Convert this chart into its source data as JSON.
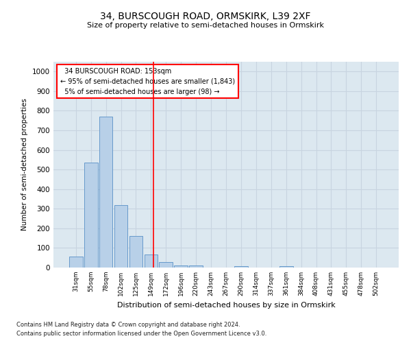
{
  "title": "34, BURSCOUGH ROAD, ORMSKIRK, L39 2XF",
  "subtitle": "Size of property relative to semi-detached houses in Ormskirk",
  "xlabel": "Distribution of semi-detached houses by size in Ormskirk",
  "ylabel": "Number of semi-detached properties",
  "footer_line1": "Contains HM Land Registry data © Crown copyright and database right 2024.",
  "footer_line2": "Contains public sector information licensed under the Open Government Licence v3.0.",
  "bar_labels": [
    "31sqm",
    "55sqm",
    "78sqm",
    "102sqm",
    "125sqm",
    "149sqm",
    "172sqm",
    "196sqm",
    "220sqm",
    "243sqm",
    "267sqm",
    "290sqm",
    "314sqm",
    "337sqm",
    "361sqm",
    "384sqm",
    "408sqm",
    "431sqm",
    "455sqm",
    "478sqm",
    "502sqm"
  ],
  "bar_values": [
    55,
    535,
    770,
    320,
    162,
    68,
    28,
    12,
    12,
    0,
    0,
    8,
    0,
    0,
    8,
    0,
    0,
    0,
    0,
    0,
    0
  ],
  "bar_color": "#b8d0e8",
  "bar_edge_color": "#6699cc",
  "property_label": "34 BURSCOUGH ROAD: 153sqm",
  "pct_smaller": 95,
  "n_smaller": 1843,
  "pct_larger": 5,
  "n_larger": 98,
  "vline_color": "red",
  "ylim": [
    0,
    1050
  ],
  "yticks": [
    0,
    100,
    200,
    300,
    400,
    500,
    600,
    700,
    800,
    900,
    1000
  ],
  "grid_color": "#c8d4e0",
  "background_color": "#dce8f0",
  "vline_index": 5.17
}
